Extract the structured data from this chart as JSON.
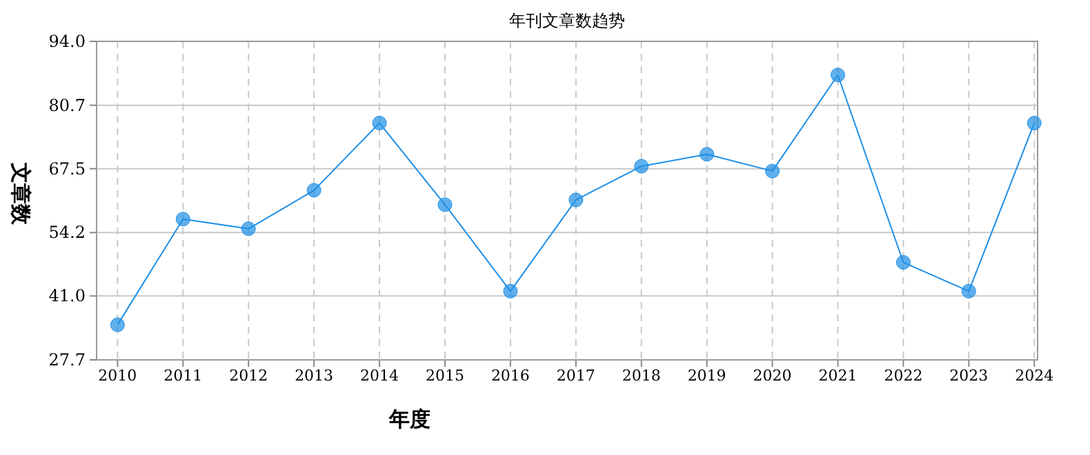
{
  "chart_data": {
    "type": "line",
    "title": "年刊文章数趋势",
    "xlabel": "年度",
    "ylabel": "文章数",
    "categories": [
      "2010",
      "2011",
      "2012",
      "2013",
      "2014",
      "2015",
      "2016",
      "2017",
      "2018",
      "2019",
      "2020",
      "2021",
      "2022",
      "2023",
      "2024"
    ],
    "series": [
      {
        "color": "#1e8fe6",
        "values": [
          35,
          57,
          55,
          63,
          77,
          60,
          42,
          61,
          68,
          70.5,
          67,
          87,
          48,
          42,
          77
        ]
      }
    ],
    "ylim": [
      27.7,
      94.0
    ],
    "yticks": [
      {
        "value": 27.7,
        "label": "27.7"
      },
      {
        "value": 41.0,
        "label": "41.0"
      },
      {
        "value": 54.2,
        "label": "54.2"
      },
      {
        "value": 67.5,
        "label": "67.5"
      },
      {
        "value": 80.7,
        "label": "80.7"
      },
      {
        "value": 94.0,
        "label": "94.0"
      }
    ],
    "grid": true,
    "marker": "circle"
  }
}
